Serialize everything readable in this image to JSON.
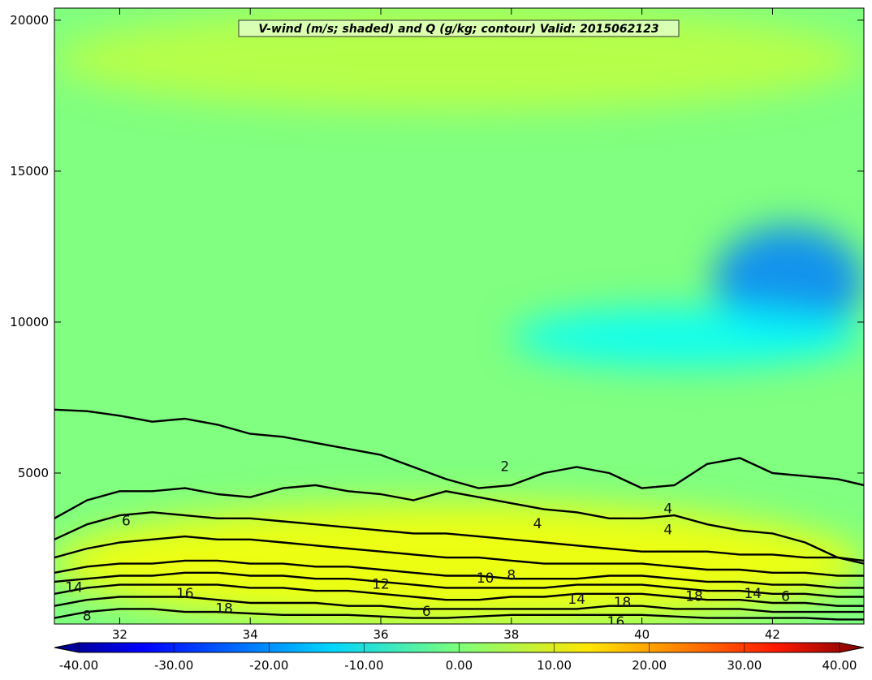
{
  "chart_data": {
    "type": "contour",
    "title": "V-wind (m/s; shaded) and Q (g/kg; contour) Valid: 2015062123",
    "xlabel": "",
    "ylabel": "",
    "xlim": [
      31.0,
      43.4
    ],
    "ylim": [
      0,
      20400
    ],
    "x_ticks": [
      32,
      34,
      36,
      38,
      40,
      42
    ],
    "y_ticks": [
      5000,
      10000,
      15000,
      20000
    ],
    "shaded": {
      "name": "V-wind (m/s)",
      "colormap": "jet",
      "range": [
        -40,
        40
      ],
      "background_level": 0,
      "features": [
        {
          "description": "negative core",
          "x": [
            41.1,
            43.4
          ],
          "y": [
            9500,
            13200
          ],
          "value": -20
        },
        {
          "description": "negative band",
          "x": [
            38.0,
            43.4
          ],
          "y": [
            8500,
            10500
          ],
          "value": -10
        },
        {
          "description": "low-level positive",
          "x": [
            31.0,
            43.4
          ],
          "y": [
            0,
            4000
          ],
          "value": 10
        },
        {
          "description": "upper positive",
          "x": [
            31.0,
            43.4
          ],
          "y": [
            17000,
            20400
          ],
          "value": 5
        }
      ]
    },
    "colorbar": {
      "ticks": [
        "-40.00",
        "-30.00",
        "-20.00",
        "-10.00",
        "0.00",
        "10.00",
        "20.00",
        "30.00",
        "40.00"
      ],
      "min": -40,
      "max": 40,
      "extend": "both"
    },
    "contours": {
      "name": "Q (g/kg)",
      "color": "#000000",
      "levels": [
        2,
        4,
        6,
        8,
        10,
        12,
        14,
        16,
        18
      ],
      "series": [
        {
          "level": 2,
          "x": [
            31.0,
            31.5,
            32.0,
            32.5,
            33.0,
            33.5,
            34.0,
            34.5,
            35.0,
            35.5,
            36.0,
            36.5,
            37.0,
            37.5,
            38.0,
            38.5,
            39.0,
            39.5,
            40.0,
            40.5,
            41.0,
            41.5,
            42.0,
            42.5,
            43.0,
            43.4
          ],
          "y": [
            7100,
            7050,
            6900,
            6700,
            6800,
            6600,
            6300,
            6200,
            6000,
            5800,
            5600,
            5200,
            4800,
            4500,
            4600,
            5000,
            5200,
            5000,
            4500,
            4600,
            5300,
            5500,
            5000,
            4900,
            4800,
            4600
          ]
        },
        {
          "level": 4,
          "x": [
            31.0,
            31.5,
            32.0,
            32.5,
            33.0,
            33.5,
            34.0,
            34.5,
            35.0,
            35.5,
            36.0,
            36.5,
            37.0,
            37.5,
            38.0,
            38.5,
            39.0,
            39.5,
            40.0,
            40.5,
            41.0,
            41.5,
            42.0,
            42.5,
            43.0,
            43.4
          ],
          "y": [
            3500,
            4100,
            4400,
            4400,
            4500,
            4300,
            4200,
            4500,
            4600,
            4400,
            4300,
            4100,
            4400,
            4200,
            4000,
            3800,
            3700,
            3500,
            3500,
            3600,
            3300,
            3100,
            3000,
            2700,
            2200,
            2000
          ]
        },
        {
          "level": 6,
          "x": [
            31.0,
            31.5,
            32.0,
            32.5,
            33.0,
            33.5,
            34.0,
            34.5,
            35.0,
            35.5,
            36.0,
            36.5,
            37.0,
            37.5,
            38.0,
            38.5,
            39.0,
            39.5,
            40.0,
            40.5,
            41.0,
            41.5,
            42.0,
            42.5,
            43.0,
            43.4
          ],
          "y": [
            2800,
            3300,
            3600,
            3700,
            3600,
            3500,
            3500,
            3400,
            3300,
            3200,
            3100,
            3000,
            3000,
            2900,
            2800,
            2700,
            2600,
            2500,
            2400,
            2400,
            2400,
            2300,
            2300,
            2200,
            2200,
            2100
          ]
        },
        {
          "level": 8,
          "x": [
            31.0,
            31.5,
            32.0,
            32.5,
            33.0,
            33.5,
            34.0,
            34.5,
            35.0,
            35.5,
            36.0,
            36.5,
            37.0,
            37.5,
            38.0,
            38.5,
            39.0,
            39.5,
            40.0,
            40.5,
            41.0,
            41.5,
            42.0,
            42.5,
            43.0,
            43.4
          ],
          "y": [
            2200,
            2500,
            2700,
            2800,
            2900,
            2800,
            2800,
            2700,
            2600,
            2500,
            2400,
            2300,
            2200,
            2200,
            2100,
            2000,
            2000,
            2000,
            2000,
            1900,
            1800,
            1800,
            1700,
            1700,
            1600,
            1600
          ]
        },
        {
          "level": 10,
          "x": [
            31.0,
            31.5,
            32.0,
            32.5,
            33.0,
            33.5,
            34.0,
            34.5,
            35.0,
            35.5,
            36.0,
            36.5,
            37.0,
            37.5,
            38.0,
            38.5,
            39.0,
            39.5,
            40.0,
            40.5,
            41.0,
            41.5,
            42.0,
            42.5,
            43.0,
            43.4
          ],
          "y": [
            1700,
            1900,
            2000,
            2000,
            2100,
            2100,
            2000,
            2000,
            1900,
            1900,
            1800,
            1700,
            1600,
            1600,
            1500,
            1500,
            1500,
            1600,
            1600,
            1500,
            1400,
            1400,
            1300,
            1300,
            1200,
            1200
          ]
        },
        {
          "level": 12,
          "x": [
            31.0,
            31.5,
            32.0,
            32.5,
            33.0,
            33.5,
            34.0,
            34.5,
            35.0,
            35.5,
            36.0,
            36.5,
            37.0,
            37.5,
            38.0,
            38.5,
            39.0,
            39.5,
            40.0,
            40.5,
            41.0,
            41.5,
            42.0,
            42.5,
            43.0,
            43.4
          ],
          "y": [
            1400,
            1500,
            1600,
            1600,
            1700,
            1700,
            1600,
            1600,
            1500,
            1500,
            1400,
            1300,
            1200,
            1200,
            1200,
            1200,
            1300,
            1300,
            1300,
            1200,
            1100,
            1100,
            1000,
            1000,
            900,
            900
          ]
        },
        {
          "level": 14,
          "x": [
            31.0,
            31.5,
            32.0,
            32.5,
            33.0,
            33.5,
            34.0,
            34.5,
            35.0,
            35.5,
            36.0,
            36.5,
            37.0,
            37.5,
            38.0,
            38.5,
            39.0,
            39.5,
            40.0,
            40.5,
            41.0,
            41.5,
            42.0,
            42.5,
            43.0,
            43.4
          ],
          "y": [
            1000,
            1200,
            1300,
            1300,
            1300,
            1300,
            1200,
            1200,
            1100,
            1100,
            1000,
            900,
            800,
            800,
            900,
            900,
            1000,
            1000,
            1000,
            900,
            800,
            800,
            700,
            700,
            600,
            600
          ]
        },
        {
          "level": 16,
          "x": [
            31.0,
            31.5,
            32.0,
            32.5,
            33.0,
            33.5,
            34.0,
            34.5,
            35.0,
            35.5,
            36.0,
            36.5,
            37.0,
            37.5,
            38.0,
            38.5,
            39.0,
            39.5,
            40.0,
            40.5,
            41.0,
            41.5,
            42.0,
            42.5,
            43.0,
            43.4
          ],
          "y": [
            600,
            800,
            900,
            900,
            900,
            800,
            700,
            700,
            700,
            600,
            600,
            500,
            500,
            500,
            500,
            500,
            500,
            600,
            600,
            500,
            500,
            500,
            400,
            400,
            400,
            400
          ]
        },
        {
          "level": 18,
          "x": [
            31.0,
            31.5,
            32.0,
            32.5,
            33.0,
            33.5,
            34.0,
            34.5,
            35.0,
            35.5,
            36.0,
            36.5,
            37.0,
            37.5,
            38.0,
            38.5,
            39.0,
            39.5,
            40.0,
            40.5,
            41.0,
            41.5,
            42.0,
            42.5,
            43.0,
            43.4
          ],
          "y": [
            200,
            400,
            500,
            500,
            400,
            400,
            350,
            300,
            300,
            300,
            250,
            200,
            200,
            250,
            300,
            300,
            300,
            300,
            300,
            250,
            200,
            200,
            200,
            200,
            150,
            150
          ]
        }
      ],
      "labels": [
        {
          "text": "2",
          "x": 37.9,
          "y": 5200
        },
        {
          "text": "4",
          "x": 38.4,
          "y": 3300
        },
        {
          "text": "4",
          "x": 40.4,
          "y": 3800
        },
        {
          "text": "4",
          "x": 40.4,
          "y": 3100
        },
        {
          "text": "6",
          "x": 32.1,
          "y": 3400
        },
        {
          "text": "6",
          "x": 36.7,
          "y": 400
        },
        {
          "text": "6",
          "x": 42.2,
          "y": 900
        },
        {
          "text": "8",
          "x": 31.5,
          "y": 250
        },
        {
          "text": "8",
          "x": 38.0,
          "y": 1600
        },
        {
          "text": "10",
          "x": 37.6,
          "y": 1500
        },
        {
          "text": "12",
          "x": 36.0,
          "y": 1300
        },
        {
          "text": "14",
          "x": 31.3,
          "y": 1200
        },
        {
          "text": "14",
          "x": 39.0,
          "y": 800
        },
        {
          "text": "14",
          "x": 41.7,
          "y": 1000
        },
        {
          "text": "16",
          "x": 33.0,
          "y": 1000
        },
        {
          "text": "16",
          "x": 39.6,
          "y": 50
        },
        {
          "text": "18",
          "x": 33.6,
          "y": 500
        },
        {
          "text": "18",
          "x": 39.7,
          "y": 700
        },
        {
          "text": "18",
          "x": 40.8,
          "y": 900
        }
      ]
    }
  }
}
